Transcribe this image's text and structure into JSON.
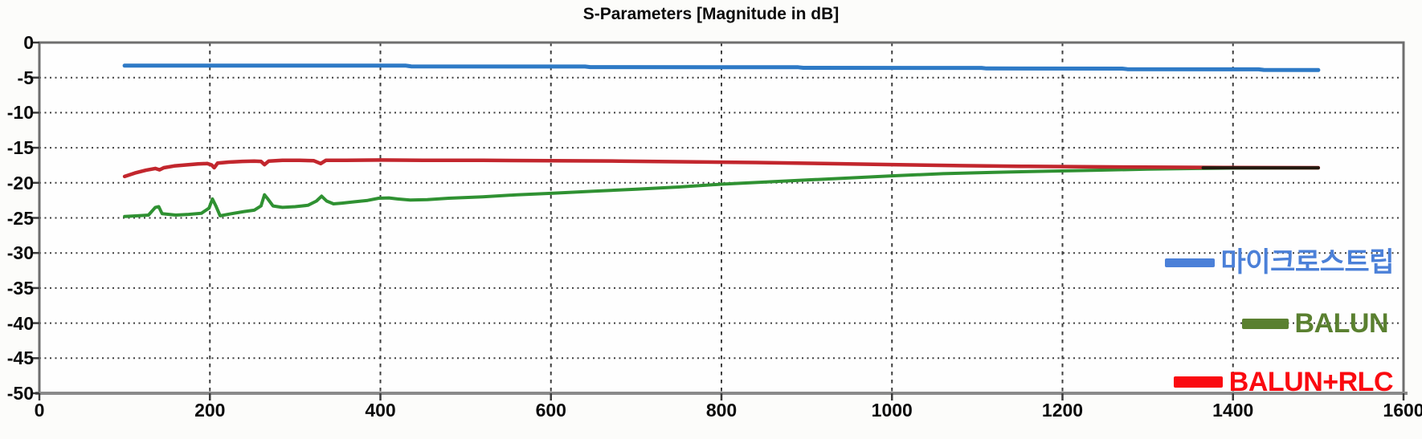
{
  "chart_data": {
    "type": "line",
    "title": "S-Parameters [Magnitude in dB]",
    "xlabel": "",
    "ylabel": "",
    "xlim": [
      0,
      1600
    ],
    "ylim": [
      -50,
      0
    ],
    "x_ticks": [
      0,
      200,
      400,
      600,
      800,
      1000,
      1200,
      1400,
      1600
    ],
    "y_ticks": [
      0,
      -5,
      -10,
      -15,
      -20,
      -25,
      -30,
      -35,
      -40,
      -45,
      -50
    ],
    "grid": true,
    "legend_position": "inside-right-bottom",
    "series": [
      {
        "id": "microstrip",
        "name": "마이크로스트립",
        "color": "#2e7ac6",
        "legend_color": "#4b80d8",
        "stroke_width": 5,
        "points": [
          [
            100,
            -3.3
          ],
          [
            430,
            -3.3
          ],
          [
            436,
            -3.4
          ],
          [
            640,
            -3.42
          ],
          [
            646,
            -3.5
          ],
          [
            890,
            -3.52
          ],
          [
            896,
            -3.6
          ],
          [
            1105,
            -3.62
          ],
          [
            1111,
            -3.7
          ],
          [
            1270,
            -3.72
          ],
          [
            1276,
            -3.8
          ],
          [
            1430,
            -3.82
          ],
          [
            1436,
            -3.9
          ],
          [
            1500,
            -3.92
          ]
        ]
      },
      {
        "id": "balun",
        "name": "BALUN",
        "color": "#2f9132",
        "legend_color": "#5a8030",
        "stroke_width": 4,
        "points": [
          [
            100,
            -24.8
          ],
          [
            115,
            -24.7
          ],
          [
            128,
            -24.6
          ],
          [
            136,
            -23.5
          ],
          [
            140,
            -23.4
          ],
          [
            144,
            -24.4
          ],
          [
            160,
            -24.6
          ],
          [
            175,
            -24.5
          ],
          [
            190,
            -24.35
          ],
          [
            199,
            -23.6
          ],
          [
            203,
            -22.3
          ],
          [
            207,
            -23.3
          ],
          [
            212,
            -24.7
          ],
          [
            225,
            -24.4
          ],
          [
            240,
            -24.1
          ],
          [
            252,
            -23.9
          ],
          [
            260,
            -23.3
          ],
          [
            264,
            -21.7
          ],
          [
            268,
            -22.3
          ],
          [
            274,
            -23.3
          ],
          [
            285,
            -23.5
          ],
          [
            300,
            -23.4
          ],
          [
            315,
            -23.2
          ],
          [
            325,
            -22.6
          ],
          [
            331,
            -21.9
          ],
          [
            337,
            -22.6
          ],
          [
            345,
            -23.0
          ],
          [
            355,
            -22.9
          ],
          [
            370,
            -22.7
          ],
          [
            385,
            -22.5
          ],
          [
            398,
            -22.2
          ],
          [
            410,
            -22.15
          ],
          [
            420,
            -22.3
          ],
          [
            435,
            -22.45
          ],
          [
            455,
            -22.4
          ],
          [
            480,
            -22.2
          ],
          [
            520,
            -22.0
          ],
          [
            560,
            -21.7
          ],
          [
            600,
            -21.5
          ],
          [
            650,
            -21.2
          ],
          [
            700,
            -20.9
          ],
          [
            750,
            -20.6
          ],
          [
            800,
            -20.2
          ],
          [
            850,
            -19.9
          ],
          [
            900,
            -19.6
          ],
          [
            950,
            -19.3
          ],
          [
            1000,
            -19.0
          ],
          [
            1060,
            -18.7
          ],
          [
            1120,
            -18.5
          ],
          [
            1180,
            -18.35
          ],
          [
            1240,
            -18.2
          ],
          [
            1300,
            -18.05
          ],
          [
            1360,
            -17.95
          ],
          [
            1400,
            -17.9
          ],
          [
            1500,
            -17.87
          ]
        ]
      },
      {
        "id": "balun-rlc",
        "name": "BALUN+RLC",
        "color": "#c2262d",
        "legend_color": "#fa0a10",
        "stroke_width": 4.5,
        "points": [
          [
            100,
            -19.1
          ],
          [
            112,
            -18.6
          ],
          [
            125,
            -18.2
          ],
          [
            136,
            -17.95
          ],
          [
            141,
            -18.15
          ],
          [
            146,
            -17.85
          ],
          [
            158,
            -17.6
          ],
          [
            172,
            -17.45
          ],
          [
            186,
            -17.3
          ],
          [
            197,
            -17.25
          ],
          [
            202,
            -17.45
          ],
          [
            205,
            -17.85
          ],
          [
            209,
            -17.2
          ],
          [
            222,
            -17.05
          ],
          [
            238,
            -16.95
          ],
          [
            252,
            -16.9
          ],
          [
            260,
            -16.95
          ],
          [
            264,
            -17.4
          ],
          [
            269,
            -16.9
          ],
          [
            285,
            -16.8
          ],
          [
            305,
            -16.8
          ],
          [
            322,
            -16.85
          ],
          [
            330,
            -17.25
          ],
          [
            336,
            -16.8
          ],
          [
            360,
            -16.78
          ],
          [
            400,
            -16.75
          ],
          [
            450,
            -16.78
          ],
          [
            520,
            -16.8
          ],
          [
            600,
            -16.85
          ],
          [
            680,
            -16.9
          ],
          [
            760,
            -17.0
          ],
          [
            840,
            -17.1
          ],
          [
            920,
            -17.25
          ],
          [
            1000,
            -17.4
          ],
          [
            1080,
            -17.55
          ],
          [
            1160,
            -17.65
          ],
          [
            1240,
            -17.72
          ],
          [
            1320,
            -17.78
          ],
          [
            1390,
            -17.82
          ],
          [
            1500,
            -17.85
          ]
        ]
      }
    ],
    "merged_tail": {
      "start_x": 1365,
      "end_x": 1500,
      "value": -17.86,
      "color": "#241a10"
    }
  }
}
